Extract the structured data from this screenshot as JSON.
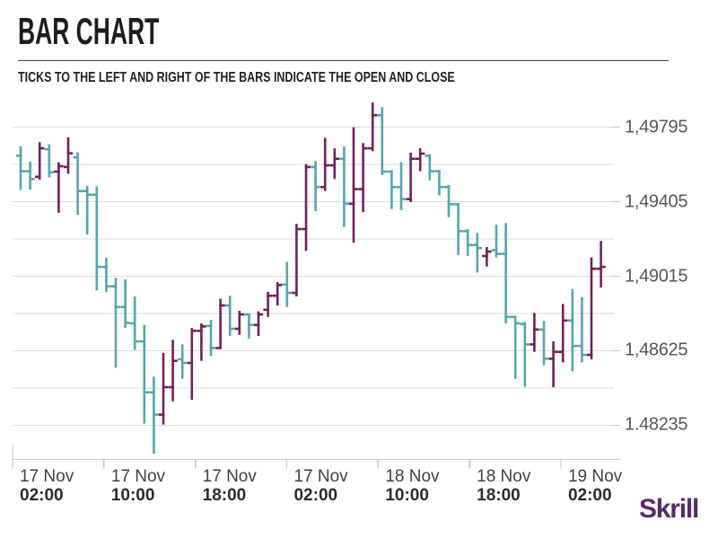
{
  "header": {
    "title": "BAR CHART",
    "subtitle": "TICKS TO THE LEFT AND RIGHT OF THE BARS INDICATE THE OPEN AND CLOSE"
  },
  "footer": {
    "brand": "Skrill"
  },
  "colors": {
    "up": "#72215B",
    "down": "#54A7AE",
    "grid": "#DBDBDB",
    "axis": "#CFCFCF",
    "tick": "#C6C6C6",
    "divider": "#6F2C5F",
    "brand": "#5A2B6C",
    "y_label": "#55565A",
    "title": "#1D1D20"
  },
  "chart_data": {
    "type": "bar",
    "subtype": "ohlc-bar",
    "title": "BAR CHART",
    "note": "TICKS TO THE LEFT AND RIGHT OF THE BARS INDICATE THE OPEN AND CLOSE",
    "grid": true,
    "legend": false,
    "y_axis": {
      "side": "right",
      "max": 1.49795,
      "min": 1.48235,
      "grid_step": 0.00195,
      "tick_labels": [
        {
          "text": "1,49795",
          "value": 1.49795
        },
        {
          "text": "1,49405",
          "value": 1.49405
        },
        {
          "text": "1,49015",
          "value": 1.49015
        },
        {
          "text": "1,48625",
          "value": 1.48625
        },
        {
          "text": "1.48235",
          "value": 1.48235
        }
      ]
    },
    "x_axis": {
      "tick_labels": [
        {
          "date": "17 Nov",
          "time": "02:00"
        },
        {
          "date": "17 Nov",
          "time": "10:00"
        },
        {
          "date": "17 Nov",
          "time": "18:00"
        },
        {
          "date": "17 Nov",
          "time": "02:00"
        },
        {
          "date": "18 Nov",
          "time": "10:00"
        },
        {
          "date": "18 Nov",
          "time": "18:00"
        },
        {
          "date": "19 Nov",
          "time": "02:00"
        }
      ]
    },
    "bars": [
      {
        "o": 1.49646,
        "h": 1.49696,
        "l": 1.49466,
        "c": 1.49565
      },
      {
        "o": 1.49565,
        "h": 1.49615,
        "l": 1.49469,
        "c": 1.49524
      },
      {
        "o": 1.49536,
        "h": 1.49717,
        "l": 1.49521,
        "c": 1.49685
      },
      {
        "o": 1.4968,
        "h": 1.49706,
        "l": 1.49533,
        "c": 1.4956
      },
      {
        "o": 1.49563,
        "h": 1.49612,
        "l": 1.49348,
        "c": 1.49591
      },
      {
        "o": 1.49587,
        "h": 1.49743,
        "l": 1.49552,
        "c": 1.49659
      },
      {
        "o": 1.49638,
        "h": 1.49665,
        "l": 1.49336,
        "c": 1.49461
      },
      {
        "o": 1.49461,
        "h": 1.49488,
        "l": 1.49234,
        "c": 1.49442
      },
      {
        "o": 1.49442,
        "h": 1.49486,
        "l": 1.48941,
        "c": 1.49064
      },
      {
        "o": 1.49064,
        "h": 1.49113,
        "l": 1.48933,
        "c": 1.48962
      },
      {
        "o": 1.48962,
        "h": 1.49007,
        "l": 1.48536,
        "c": 1.48854
      },
      {
        "o": 1.48854,
        "h": 1.48999,
        "l": 1.48744,
        "c": 1.48771
      },
      {
        "o": 1.48768,
        "h": 1.48909,
        "l": 1.4863,
        "c": 1.48674
      },
      {
        "o": 1.48674,
        "h": 1.4876,
        "l": 1.48243,
        "c": 1.48407
      },
      {
        "o": 1.48407,
        "h": 1.48489,
        "l": 1.48086,
        "c": 1.4829
      },
      {
        "o": 1.4829,
        "h": 1.48614,
        "l": 1.48238,
        "c": 1.48434
      },
      {
        "o": 1.48434,
        "h": 1.48682,
        "l": 1.4836,
        "c": 1.48572
      },
      {
        "o": 1.4858,
        "h": 1.48658,
        "l": 1.48478,
        "c": 1.48561
      },
      {
        "o": 1.48561,
        "h": 1.48744,
        "l": 1.48368,
        "c": 1.48729
      },
      {
        "o": 1.48729,
        "h": 1.48768,
        "l": 1.48572,
        "c": 1.48752
      },
      {
        "o": 1.48755,
        "h": 1.48787,
        "l": 1.48598,
        "c": 1.48639
      },
      {
        "o": 1.48639,
        "h": 1.48897,
        "l": 1.48639,
        "c": 1.48862
      },
      {
        "o": 1.48862,
        "h": 1.48913,
        "l": 1.48702,
        "c": 1.4874
      },
      {
        "o": 1.4874,
        "h": 1.48834,
        "l": 1.48708,
        "c": 1.48815
      },
      {
        "o": 1.48815,
        "h": 1.48818,
        "l": 1.48689,
        "c": 1.4876
      },
      {
        "o": 1.4876,
        "h": 1.48831,
        "l": 1.48702,
        "c": 1.48815
      },
      {
        "o": 1.48839,
        "h": 1.48933,
        "l": 1.48802,
        "c": 1.48913
      },
      {
        "o": 1.48913,
        "h": 1.48984,
        "l": 1.48862,
        "c": 1.48969
      },
      {
        "o": 1.48972,
        "h": 1.4909,
        "l": 1.48854,
        "c": 1.48928
      },
      {
        "o": 1.48928,
        "h": 1.49289,
        "l": 1.48909,
        "c": 1.49262
      },
      {
        "o": 1.49262,
        "h": 1.49602,
        "l": 1.49148,
        "c": 1.49587
      },
      {
        "o": 1.49587,
        "h": 1.49618,
        "l": 1.49356,
        "c": 1.49482
      },
      {
        "o": 1.49482,
        "h": 1.4974,
        "l": 1.49461,
        "c": 1.49596
      },
      {
        "o": 1.49596,
        "h": 1.49685,
        "l": 1.49524,
        "c": 1.4963
      },
      {
        "o": 1.4963,
        "h": 1.49696,
        "l": 1.49273,
        "c": 1.49395
      },
      {
        "o": 1.49395,
        "h": 1.49795,
        "l": 1.49191,
        "c": 1.49471
      },
      {
        "o": 1.49471,
        "h": 1.49712,
        "l": 1.49351,
        "c": 1.49685
      },
      {
        "o": 1.49685,
        "h": 1.49925,
        "l": 1.4967,
        "c": 1.49858
      },
      {
        "o": 1.49858,
        "h": 1.499,
        "l": 1.49544,
        "c": 1.49563
      },
      {
        "o": 1.49563,
        "h": 1.49571,
        "l": 1.49367,
        "c": 1.49482
      },
      {
        "o": 1.49482,
        "h": 1.49612,
        "l": 1.49361,
        "c": 1.49419
      },
      {
        "o": 1.49419,
        "h": 1.49662,
        "l": 1.49403,
        "c": 1.4963
      },
      {
        "o": 1.4963,
        "h": 1.49685,
        "l": 1.49565,
        "c": 1.49657
      },
      {
        "o": 1.49646,
        "h": 1.49654,
        "l": 1.49517,
        "c": 1.49565
      },
      {
        "o": 1.49565,
        "h": 1.49571,
        "l": 1.49439,
        "c": 1.49482
      },
      {
        "o": 1.49482,
        "h": 1.49493,
        "l": 1.49325,
        "c": 1.49392
      },
      {
        "o": 1.49392,
        "h": 1.49398,
        "l": 1.49125,
        "c": 1.49251
      },
      {
        "o": 1.49251,
        "h": 1.49262,
        "l": 1.49121,
        "c": 1.49179
      },
      {
        "o": 1.49179,
        "h": 1.49242,
        "l": 1.49035,
        "c": 1.49163
      },
      {
        "o": 1.49121,
        "h": 1.49168,
        "l": 1.49066,
        "c": 1.49144
      },
      {
        "o": 1.49152,
        "h": 1.49285,
        "l": 1.49113,
        "c": 1.49132
      },
      {
        "o": 1.49132,
        "h": 1.49294,
        "l": 1.48768,
        "c": 1.48802
      },
      {
        "o": 1.48802,
        "h": 1.48802,
        "l": 1.48478,
        "c": 1.48768
      },
      {
        "o": 1.48765,
        "h": 1.48776,
        "l": 1.48436,
        "c": 1.48658
      },
      {
        "o": 1.48658,
        "h": 1.48823,
        "l": 1.48619,
        "c": 1.48736
      },
      {
        "o": 1.48736,
        "h": 1.48781,
        "l": 1.48548,
        "c": 1.48583
      },
      {
        "o": 1.48583,
        "h": 1.48674,
        "l": 1.48434,
        "c": 1.48619
      },
      {
        "o": 1.48619,
        "h": 1.4887,
        "l": 1.48564,
        "c": 1.48783
      },
      {
        "o": 1.48783,
        "h": 1.48948,
        "l": 1.48517,
        "c": 1.4865
      },
      {
        "o": 1.4865,
        "h": 1.48906,
        "l": 1.48564,
        "c": 1.48603
      },
      {
        "o": 1.48603,
        "h": 1.49113,
        "l": 1.4858,
        "c": 1.49054
      },
      {
        "o": 1.49054,
        "h": 1.492,
        "l": 1.48956,
        "c": 1.49064
      }
    ]
  }
}
